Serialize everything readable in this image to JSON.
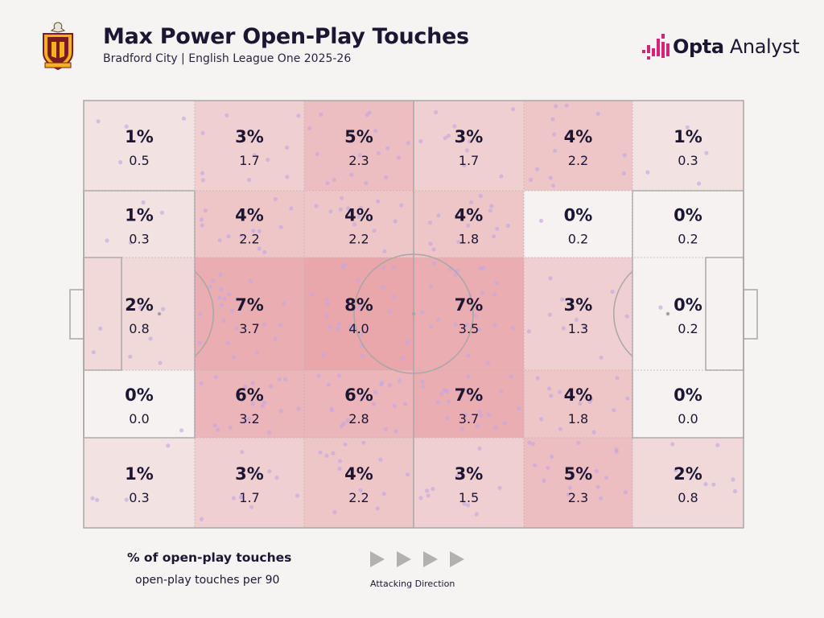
{
  "header": {
    "title": "Max Power Open-Play Touches",
    "subtitle": "Bradford City | English League One 2025-26"
  },
  "brand": {
    "name_bold": "Opta",
    "name_light": "Analyst"
  },
  "legend": {
    "primary": "% of open-play touches",
    "secondary": "open-play touches per 90",
    "direction": "Attacking Direction"
  },
  "colors": {
    "text": "#1c1633",
    "zone_base": "#f5f4f2",
    "zone_hot": "#e9a6ab",
    "dot": "#c4a8e0",
    "brand": "#d1247a"
  },
  "chart_data": {
    "type": "heatmap",
    "title": "Max Power Open-Play Touches",
    "subtitle": "Bradford City | English League One 2025-26",
    "rows": 5,
    "cols": 6,
    "cells": [
      [
        {
          "pct": "1%",
          "p90": "0.5"
        },
        {
          "pct": "3%",
          "p90": "1.7"
        },
        {
          "pct": "5%",
          "p90": "2.3"
        },
        {
          "pct": "3%",
          "p90": "1.7"
        },
        {
          "pct": "4%",
          "p90": "2.2"
        },
        {
          "pct": "1%",
          "p90": "0.3"
        }
      ],
      [
        {
          "pct": "1%",
          "p90": "0.3"
        },
        {
          "pct": "4%",
          "p90": "2.2"
        },
        {
          "pct": "4%",
          "p90": "2.2"
        },
        {
          "pct": "4%",
          "p90": "1.8"
        },
        {
          "pct": "0%",
          "p90": "0.2"
        },
        {
          "pct": "0%",
          "p90": "0.2"
        }
      ],
      [
        {
          "pct": "2%",
          "p90": "0.8"
        },
        {
          "pct": "7%",
          "p90": "3.7"
        },
        {
          "pct": "8%",
          "p90": "4.0"
        },
        {
          "pct": "7%",
          "p90": "3.5"
        },
        {
          "pct": "3%",
          "p90": "1.3"
        },
        {
          "pct": "0%",
          "p90": "0.2"
        }
      ],
      [
        {
          "pct": "0%",
          "p90": "0.0"
        },
        {
          "pct": "6%",
          "p90": "3.2"
        },
        {
          "pct": "6%",
          "p90": "2.8"
        },
        {
          "pct": "7%",
          "p90": "3.7"
        },
        {
          "pct": "4%",
          "p90": "1.8"
        },
        {
          "pct": "0%",
          "p90": "0.0"
        }
      ],
      [
        {
          "pct": "1%",
          "p90": "0.3"
        },
        {
          "pct": "3%",
          "p90": "1.7"
        },
        {
          "pct": "4%",
          "p90": "2.2"
        },
        {
          "pct": "3%",
          "p90": "1.5"
        },
        {
          "pct": "5%",
          "p90": "2.3"
        },
        {
          "pct": "2%",
          "p90": "0.8"
        }
      ]
    ],
    "max_pct": 8,
    "attacking_direction": "left-to-right"
  }
}
